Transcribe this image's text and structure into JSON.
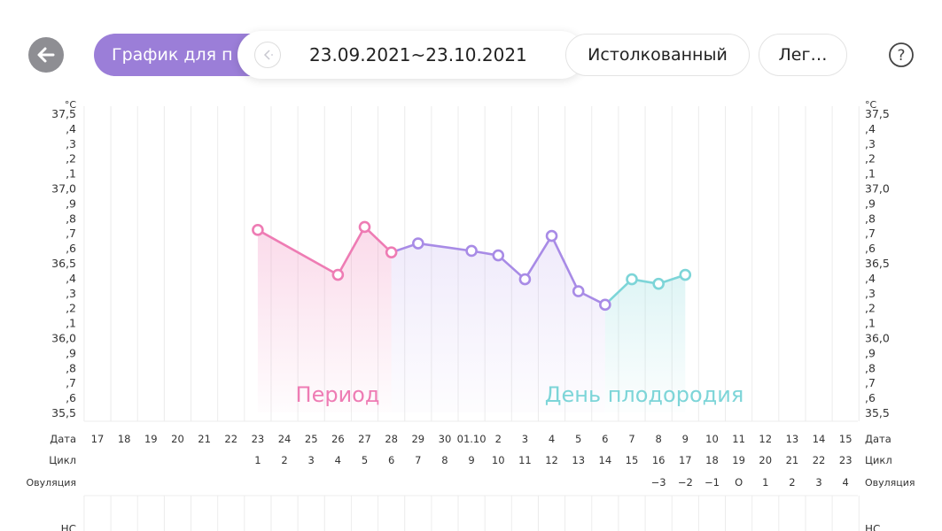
{
  "header": {
    "chart_tab_label": "График для п",
    "range_label": "23.09.2021~23.10.2021",
    "interpreted_label": "Истолкованный",
    "legend_label": "Лег…",
    "icons": {
      "back": "back-arrow-icon",
      "range": "chevron-left-icon",
      "help": "help-icon"
    }
  },
  "axis": {
    "unit": "°C",
    "left_labels": [
      "37,5",
      ",4",
      ",3",
      ",2",
      ",1",
      "37,0",
      ",9",
      ",8",
      ",7",
      ",6",
      "36,5",
      ",4",
      ",3",
      ",2",
      ",1",
      "36,0",
      ",9",
      ",8",
      ",7",
      ",6",
      "35,5"
    ],
    "right_labels": [
      "37,5",
      ",4",
      ",3",
      ",2",
      ",1",
      "37,0",
      ",9",
      ",8",
      ",7",
      ",6",
      "36,5",
      ",4",
      ",3",
      ",2",
      ",1",
      "36,0",
      ",9",
      ",8",
      ",7",
      ",6",
      "35,5"
    ]
  },
  "rows": {
    "date_label": "Дата",
    "cycle_label": "Цикл",
    "ovulation_label": "Овуляция",
    "nc_label": "НС",
    "dates": [
      "17",
      "18",
      "19",
      "20",
      "21",
      "22",
      "23",
      "24",
      "25",
      "26",
      "27",
      "28",
      "29",
      "30",
      "01.10",
      "2",
      "3",
      "4",
      "5",
      "6",
      "7",
      "8",
      "9",
      "10",
      "11",
      "12",
      "13",
      "14",
      "15"
    ],
    "cycle_days": [
      "",
      "",
      "",
      "",
      "",
      "",
      "1",
      "2",
      "3",
      "4",
      "5",
      "6",
      "7",
      "8",
      "9",
      "10",
      "11",
      "12",
      "13",
      "14",
      "15",
      "16",
      "17",
      "18",
      "19",
      "20",
      "21",
      "22",
      "23"
    ],
    "ovulation_marks": [
      "",
      "",
      "",
      "",
      "",
      "",
      "",
      "",
      "",
      "",
      "",
      "",
      "",
      "",
      "",
      "",
      "",
      "",
      "",
      "",
      "",
      "−3",
      "−2",
      "−1",
      "O",
      "1",
      "2",
      "3",
      "4"
    ]
  },
  "annotations": {
    "period": "Период",
    "fertile": "День плодородия"
  },
  "colors": {
    "pink": "#ee7cb4",
    "purple": "#a88be6",
    "teal": "#7dd5d8",
    "tab": "#9b7ed8",
    "back": "#8e8e93"
  },
  "chart_data": {
    "type": "line",
    "ylim": [
      35.5,
      37.5
    ],
    "ylabel": "°C",
    "series": [
      {
        "points": [
          {
            "x": "23",
            "y": 36.72
          },
          {
            "x": "26",
            "y": 36.42
          },
          {
            "x": "27",
            "y": 36.74
          },
          {
            "x": "28",
            "y": 36.57
          }
        ]
      },
      {
        "points": [
          {
            "x": "28",
            "y": 36.57
          },
          {
            "x": "29",
            "y": 36.63
          },
          {
            "x": "01.10",
            "y": 36.58
          },
          {
            "x": "2",
            "y": 36.55
          },
          {
            "x": "3",
            "y": 36.39
          },
          {
            "x": "4",
            "y": 36.68
          },
          {
            "x": "5",
            "y": 36.31
          },
          {
            "x": "6",
            "y": 36.22
          }
        ]
      },
      {
        "points": [
          {
            "x": "6",
            "y": 36.22
          },
          {
            "x": "7",
            "y": 36.39
          },
          {
            "x": "8",
            "y": 36.36
          },
          {
            "x": "9",
            "y": 36.42
          }
        ]
      }
    ]
  }
}
